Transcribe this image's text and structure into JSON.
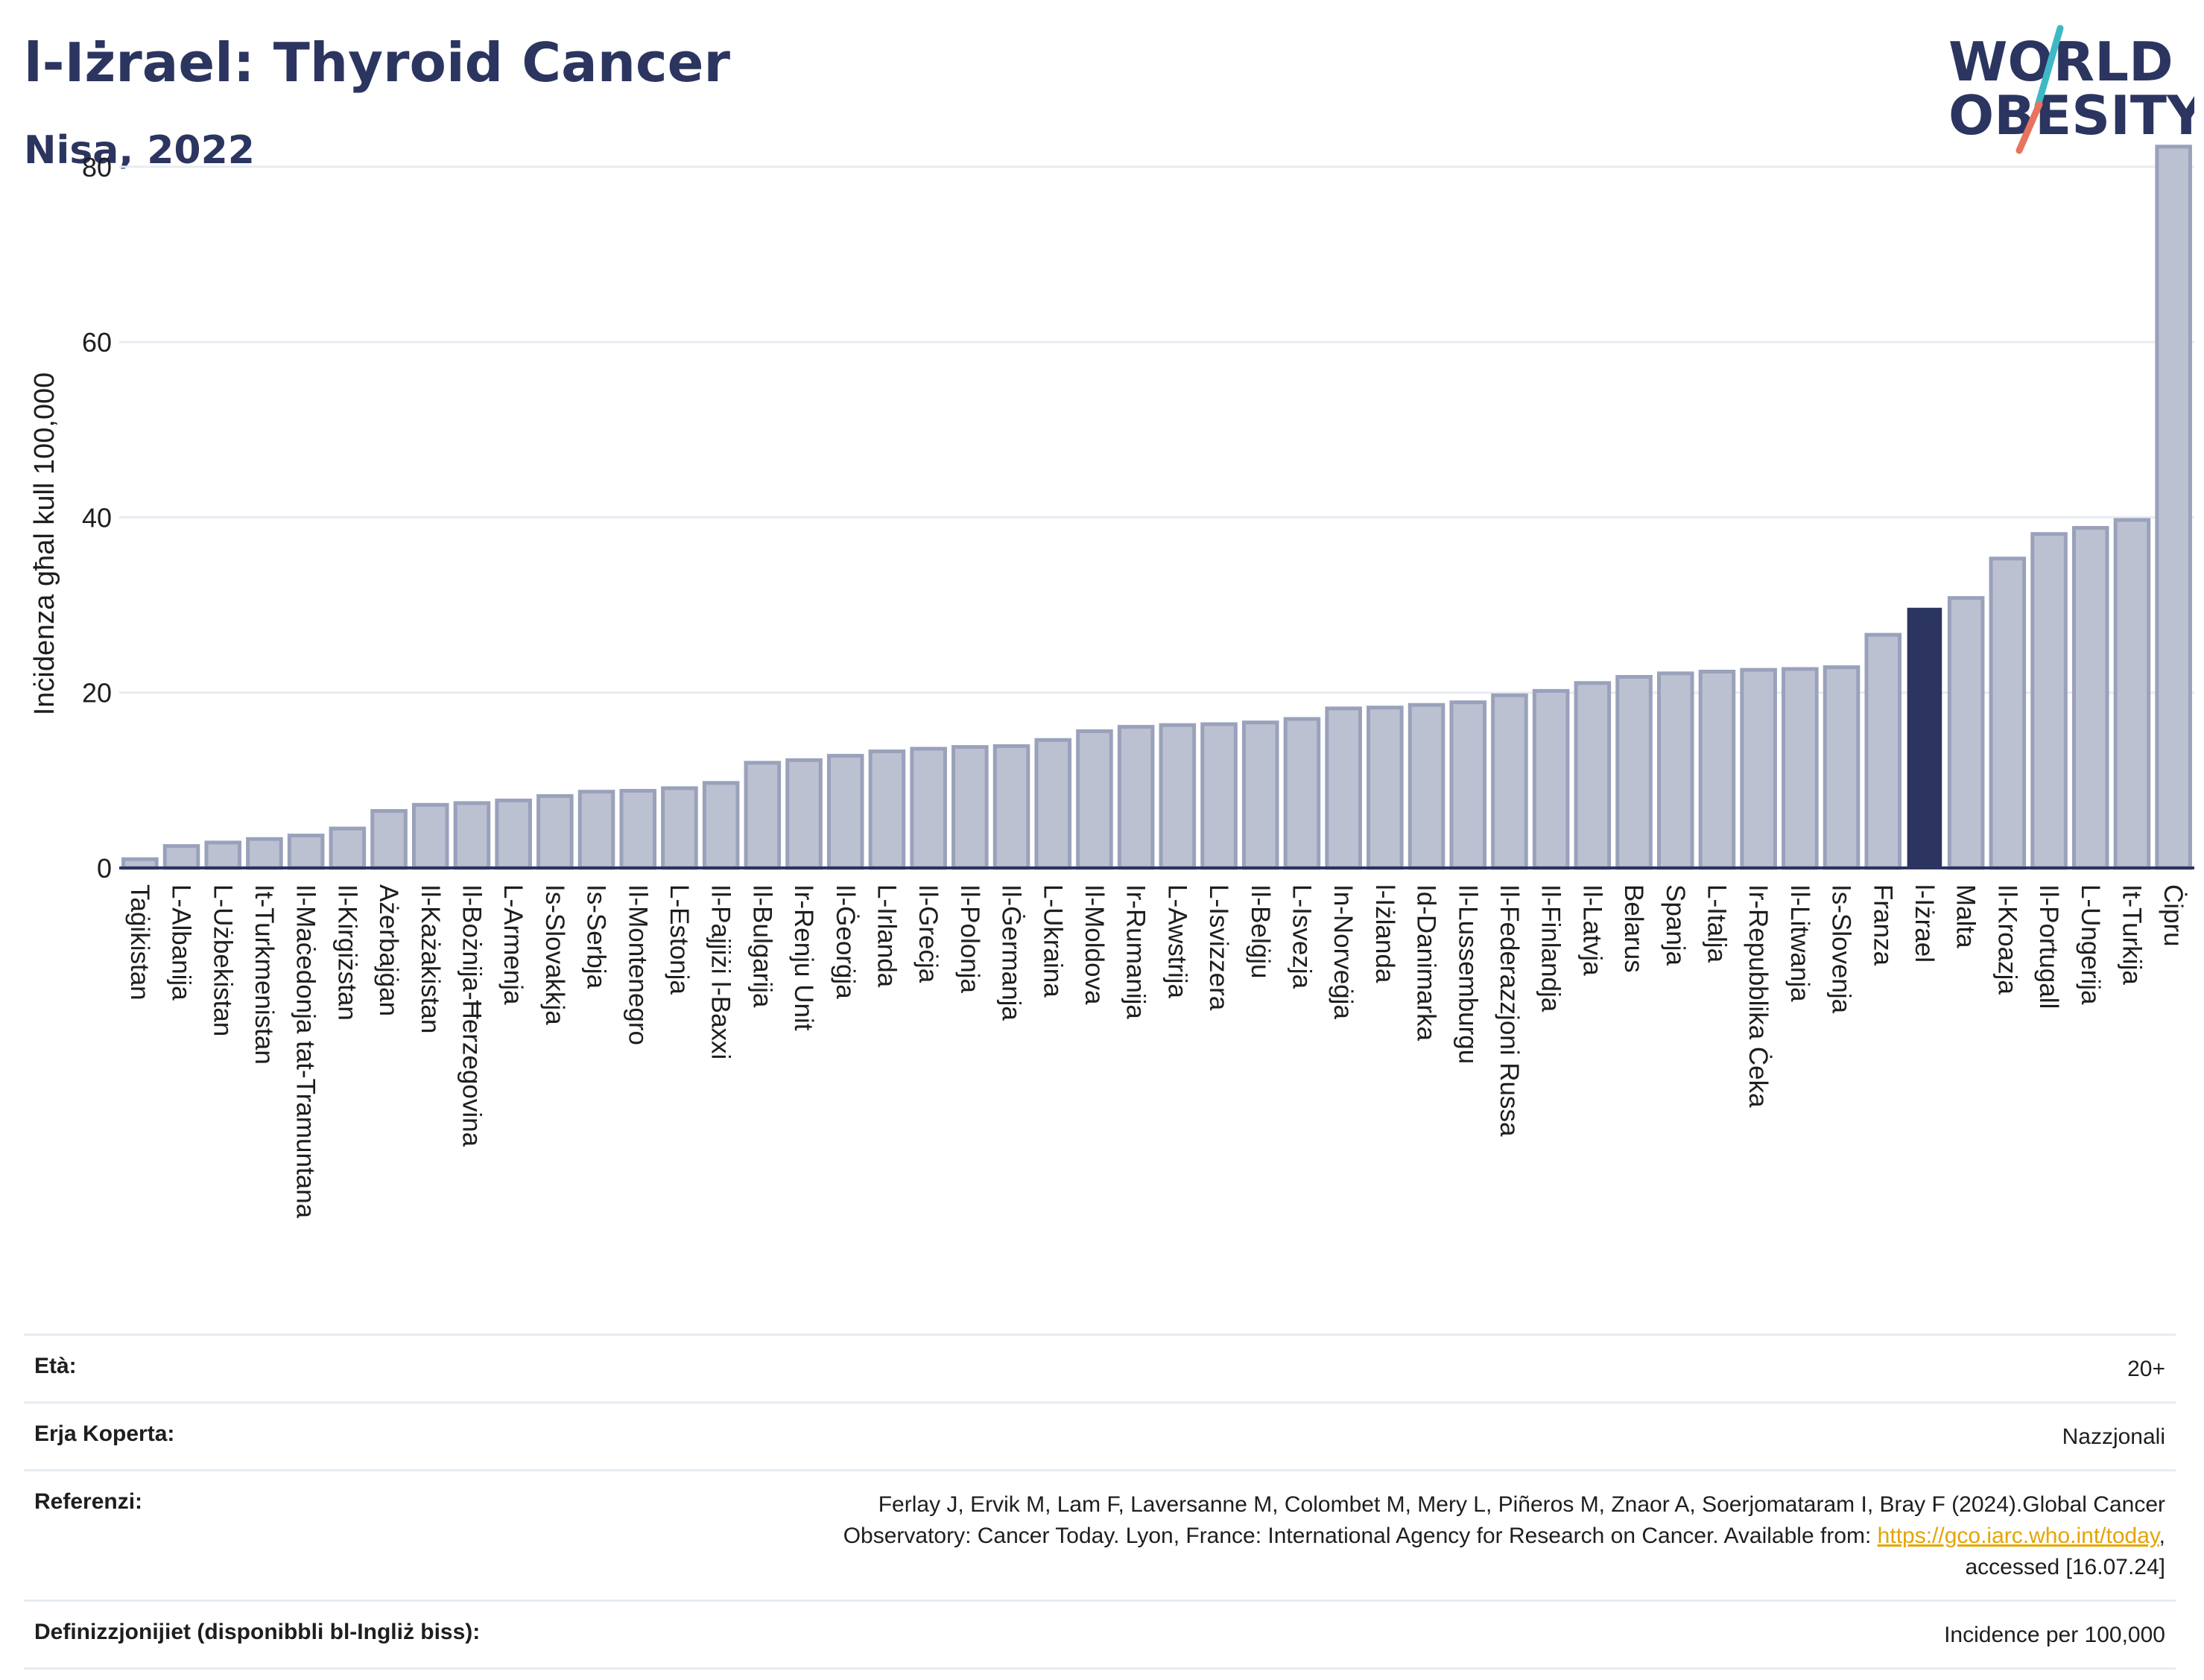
{
  "header": {
    "title": "l-Iżrael: Thyroid Cancer",
    "subtitle": "Nisa, 2022",
    "logo_line1": "WORLD",
    "logo_line2": "OBESITY"
  },
  "colors": {
    "highlight": "#2b3560",
    "bar_fill": "#bcc1d1",
    "bar_stroke": "#9aa1bb",
    "grid": "#e6ecf2",
    "text": "#1e1e1e",
    "logo_slash_teal": "#3fb8c5",
    "logo_slash_coral": "#e8735e",
    "link": "#e5a400"
  },
  "chart_data": {
    "type": "bar",
    "title": "l-Iżrael: Thyroid Cancer",
    "subtitle": "Nisa, 2022",
    "ylabel": "Inċidenza għal kull 100,000",
    "xlabel": "",
    "ylim": [
      0,
      85
    ],
    "yticks": [
      0,
      20,
      40,
      60,
      80
    ],
    "grid": true,
    "highlight": "l-Iżrael",
    "categories": [
      "Taġikistan",
      "L-Albanija",
      "L-Użbekistan",
      "It-Turkmenistan",
      "Il-Maċedonja tat-Tramuntana",
      "Il-Kirgiżstan",
      "Ażerbajġan",
      "Il-Każakistan",
      "Il-Bożnija-Ħerzegovina",
      "L-Armenja",
      "Is-Slovakkja",
      "Is-Serbja",
      "Il-Montenegro",
      "L-Estonja",
      "Il-Pajjiżi l-Baxxi",
      "Il-Bulgarija",
      "Ir-Renju Unit",
      "Il-Ġeorġja",
      "L-Irlanda",
      "Il-Greċja",
      "Il-Polonja",
      "Il-Ġermanja",
      "L-Ukraina",
      "Il-Moldova",
      "Ir-Rumanija",
      "L-Awstrija",
      "L-Isvizzera",
      "Il-Belġju",
      "L-Isvezja",
      "In-Norveġja",
      "l-Iżlanda",
      "Id-Danimarka",
      "Il-Lussemburgu",
      "Il-Federazzjoni Russa",
      "Il-Finlandja",
      "Il-Latvja",
      "Belarus",
      "Spanja",
      "L-Italja",
      "Ir-Repubblika Ċeka",
      "Il-Litwanja",
      "Is-Slovenja",
      "Franza",
      "l-Iżrael",
      "Malta",
      "Il-Kroazja",
      "Il-Portugall",
      "L-Ungerija",
      "It-Turkija",
      "Ċipru"
    ],
    "values": [
      1.0,
      2.5,
      2.9,
      3.3,
      3.7,
      4.5,
      6.5,
      7.2,
      7.4,
      7.7,
      8.2,
      8.7,
      8.8,
      9.1,
      9.7,
      12.0,
      12.3,
      12.8,
      13.3,
      13.6,
      13.8,
      13.9,
      14.6,
      15.6,
      16.1,
      16.3,
      16.4,
      16.6,
      17.0,
      18.2,
      18.3,
      18.6,
      18.9,
      19.7,
      20.2,
      21.1,
      21.8,
      22.2,
      22.4,
      22.6,
      22.7,
      22.9,
      26.6,
      29.6,
      30.8,
      35.3,
      38.1,
      38.8,
      39.7,
      82.3
    ]
  },
  "info": {
    "age_label": "Età:",
    "age_value": "20+",
    "coverage_label": "Erja Koperta:",
    "coverage_value": "Nazzjonali",
    "reference_label": "Referenzi:",
    "reference_text_1": "Ferlay J, Ervik M, Lam F, Laversanne M, Colombet M, Mery L, Piñeros M, Znaor A, Soerjomataram I, Bray F (2024).Global Cancer",
    "reference_text_2": "Observatory: Cancer Today. Lyon, France: International Agency for Research on Cancer. Available from: ",
    "reference_link": "https://gco.iarc.who.int/today",
    "reference_text_3": ",",
    "reference_text_4": "accessed [16.07.24]",
    "definitions_label": "Definizzjonijiet (disponibbli bl-Ingliż biss):",
    "definitions_value": "Incidence per 100,000"
  }
}
